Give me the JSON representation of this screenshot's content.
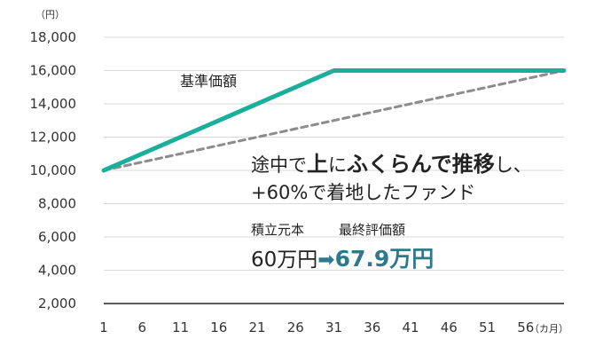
{
  "chart_data": {
    "type": "line",
    "y_unit": "（円）",
    "x_unit": "（カ月）",
    "x": [
      1,
      6,
      11,
      16,
      21,
      26,
      31,
      36,
      41,
      46,
      51,
      56
    ],
    "ylim": [
      2000,
      18000
    ],
    "yticks": [
      2000,
      4000,
      6000,
      8000,
      10000,
      12000,
      14000,
      16000,
      18000
    ],
    "ytick_labels": [
      "2,000",
      "4,000",
      "6,000",
      "8,000",
      "10,000",
      "12,000",
      "14,000",
      "16,000",
      "18,000"
    ],
    "grid": true,
    "series": [
      {
        "name": "基準価額",
        "style": "solid",
        "color": "#1aaf9a",
        "points": [
          [
            1,
            10000
          ],
          [
            31,
            16000
          ],
          [
            61,
            16000
          ]
        ]
      },
      {
        "name": "",
        "style": "dashed",
        "color": "#8c8c8c",
        "points": [
          [
            1,
            10000
          ],
          [
            61,
            16000
          ]
        ]
      }
    ]
  },
  "annotation": {
    "line1_prefix": "途中で",
    "line1_bold1": "上",
    "line1_mid": "に",
    "line1_bold2": "ふくらんで推移",
    "line1_suffix": "し、",
    "line2": "+60%で着地したファンド"
  },
  "summary": {
    "principal_label": "積立元本",
    "evaluation_label": "最終評価額",
    "principal_value": "60万円",
    "arrow": "➡",
    "evaluation_value": "67.9万円",
    "accent_color": "#2b7b8c"
  }
}
